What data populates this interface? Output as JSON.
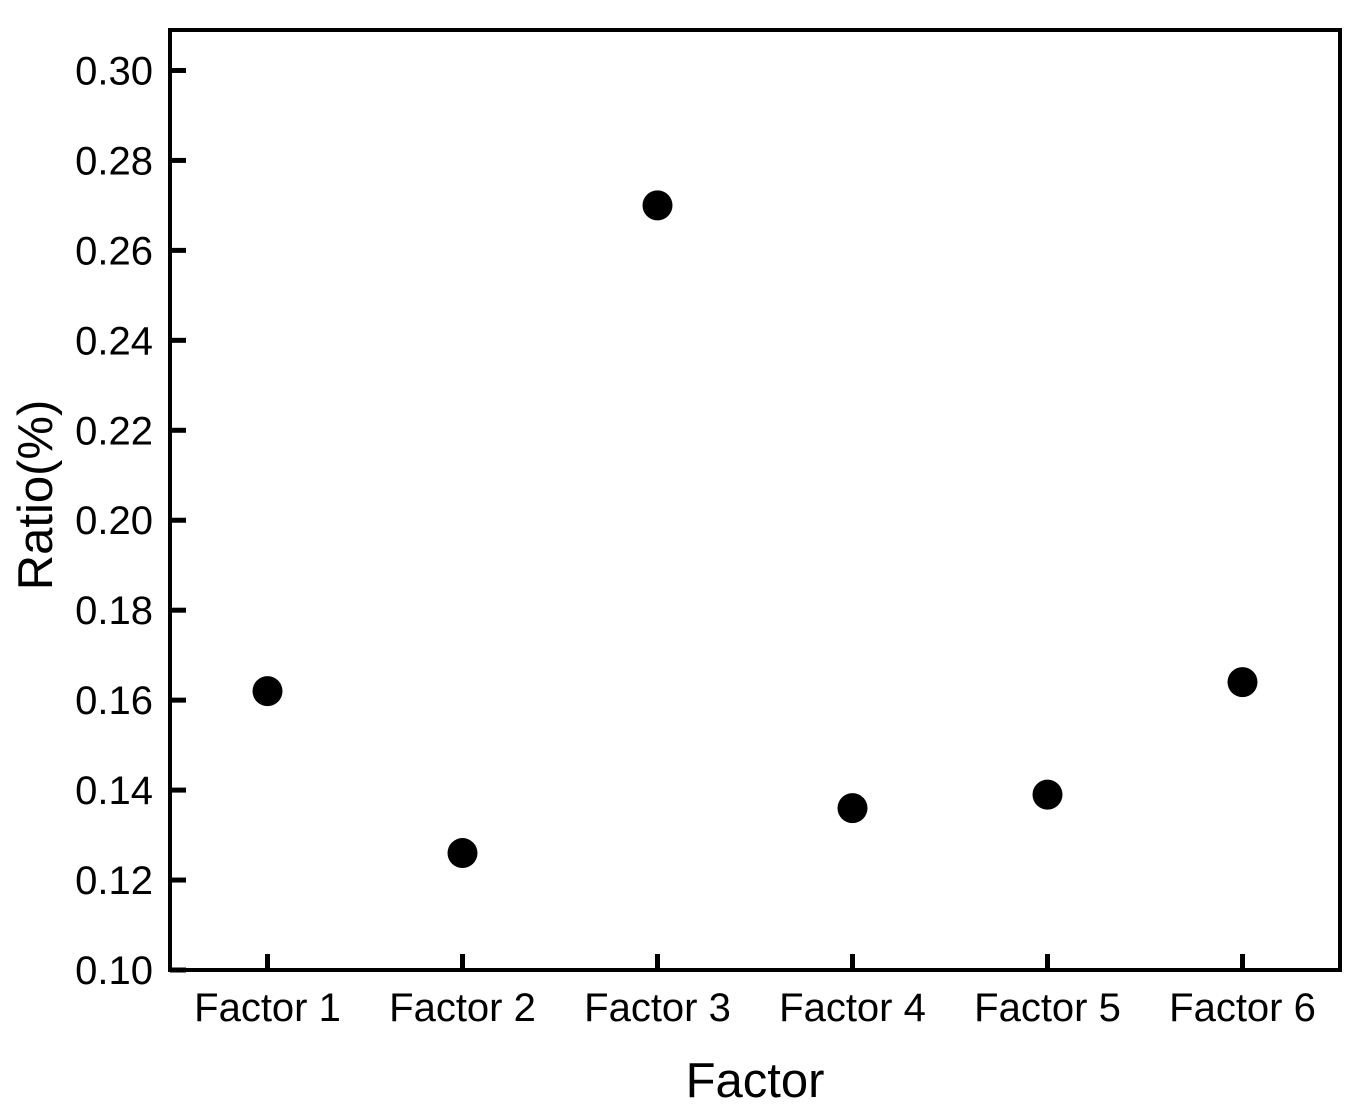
{
  "chart_data": {
    "type": "scatter",
    "title": "",
    "xlabel": "Factor",
    "ylabel": "Ratio(%)",
    "categories": [
      "Factor 1",
      "Factor 2",
      "Factor 3",
      "Factor 4",
      "Factor 5",
      "Factor 6"
    ],
    "values": [
      0.162,
      0.126,
      0.27,
      0.136,
      0.139,
      0.164
    ],
    "series": [
      {
        "name": "Ratio",
        "values": [
          0.162,
          0.126,
          0.27,
          0.136,
          0.139,
          0.164
        ]
      }
    ],
    "ylim": [
      0.1,
      0.309
    ],
    "yticks": [
      0.1,
      0.12,
      0.14,
      0.16,
      0.18,
      0.2,
      0.22,
      0.24,
      0.26,
      0.28,
      0.3
    ],
    "ytick_decimals": 2,
    "grid": false,
    "legend": false,
    "marker_shape": "circle",
    "marker_color": "#000000",
    "marker_diameter_px": 30,
    "axis_color": "#000000",
    "background_color": "#ffffff"
  }
}
